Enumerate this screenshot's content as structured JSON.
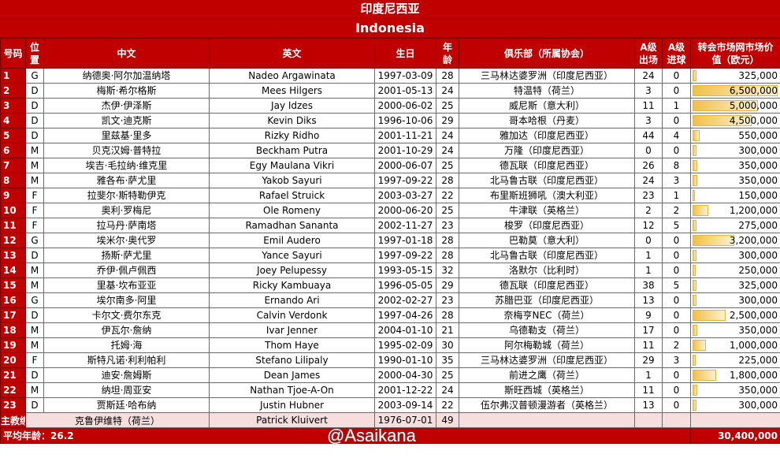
{
  "title": "印度尼西亚",
  "subtitle": "Indonesia",
  "headers": {
    "num": "号码",
    "pos": "位置",
    "cn": "中文",
    "en": "英文",
    "birth": "生日",
    "age": "年龄",
    "club": "俱乐部（所属协会）",
    "caps": "A级出场",
    "goals": "A级进球",
    "value": "转会市场网市场价值（欧元）"
  },
  "players": [
    [
      "1",
      "G",
      "纳德奥·阿尔加温纳塔",
      "Nadeo Argawinata",
      "1997-03-09",
      "28",
      "三马林达婆罗洲（印度尼西亚）",
      "24",
      "0",
      "325,000",
      325000
    ],
    [
      "2",
      "D",
      "梅斯·希尔格斯",
      "Mees Hilgers",
      "2001-05-13",
      "24",
      "特温特（荷兰）",
      "3",
      "0",
      "6,500,000",
      6500000
    ],
    [
      "3",
      "D",
      "杰伊·伊泽斯",
      "Jay Idzes",
      "2000-06-02",
      "25",
      "威尼斯（意大利）",
      "11",
      "1",
      "5,000,000",
      5000000
    ],
    [
      "4",
      "D",
      "凯文·迪克斯",
      "Kevin Diks",
      "1996-10-06",
      "29",
      "哥本哈根（丹麦）",
      "3",
      "0",
      "4,500,000",
      4500000
    ],
    [
      "5",
      "D",
      "里兹基·里多",
      "Rizky Ridho",
      "2001-11-21",
      "24",
      "雅加达（印度尼西亚）",
      "44",
      "4",
      "550,000",
      550000
    ],
    [
      "6",
      "M",
      "贝克汉姆·普特拉",
      "Beckham Putra",
      "2001-10-29",
      "24",
      "万隆（印度尼西亚）",
      "0",
      "0",
      "300,000",
      300000
    ],
    [
      "7",
      "M",
      "埃吉·毛拉纳·维克里",
      "Egy Maulana Vikri",
      "2000-06-07",
      "25",
      "德瓦联（印度尼西亚）",
      "26",
      "8",
      "350,000",
      350000
    ],
    [
      "8",
      "M",
      "雅各布·萨尤里",
      "Yakob Sayuri",
      "1997-09-22",
      "28",
      "北马鲁古联（印度尼西亚）",
      "24",
      "3",
      "350,000",
      350000
    ],
    [
      "9",
      "F",
      "拉斐尔·斯特勒伊克",
      "Rafael Struick",
      "2003-03-27",
      "22",
      "布里斯班狮吼（澳大利亚）",
      "23",
      "1",
      "150,000",
      150000
    ],
    [
      "10",
      "F",
      "奥利·罗梅尼",
      "Ole Romeny",
      "2000-06-20",
      "25",
      "牛津联（英格兰）",
      "2",
      "2",
      "1,200,000",
      1200000
    ],
    [
      "11",
      "F",
      "拉马丹·萨南塔",
      "Ramadhan Sananta",
      "2002-11-27",
      "23",
      "梭罗（印度尼西亚）",
      "12",
      "5",
      "275,000",
      275000
    ],
    [
      "12",
      "G",
      "埃米尔·奥代罗",
      "Emil Audero",
      "1997-01-18",
      "28",
      "巴勒莫（意大利）",
      "0",
      "0",
      "3,200,000",
      3200000
    ],
    [
      "13",
      "D",
      "扬斯·萨尤里",
      "Yance Sayuri",
      "1997-09-22",
      "28",
      "北马鲁古联（印度尼西亚）",
      "1",
      "0",
      "300,000",
      300000
    ],
    [
      "14",
      "M",
      "乔伊·佩卢佩西",
      "Joey Pelupessy",
      "1993-05-15",
      "32",
      "洛默尔（比利时）",
      "1",
      "0",
      "250,000",
      250000
    ],
    [
      "15",
      "M",
      "里基·坎布亚亚",
      "Ricky Kambuaya",
      "1996-05-05",
      "29",
      "德瓦联（印度尼西亚）",
      "38",
      "5",
      "325,000",
      325000
    ],
    [
      "16",
      "G",
      "埃尔南多·阿里",
      "Ernando Ari",
      "2002-02-27",
      "23",
      "苏腊巴亚（印度尼西亚）",
      "13",
      "0",
      "300,000",
      300000
    ],
    [
      "17",
      "D",
      "卡尔文·费尔东克",
      "Calvin Verdonk",
      "1997-04-26",
      "28",
      "奈梅亨NEC（荷兰）",
      "9",
      "0",
      "2,500,000",
      2500000
    ],
    [
      "18",
      "M",
      "伊瓦尔·詹纳",
      "Ivar Jenner",
      "2004-01-10",
      "21",
      "乌德勒支（荷兰）",
      "17",
      "0",
      "350,000",
      350000
    ],
    [
      "19",
      "M",
      "托姆·海",
      "Thom Haye",
      "1995-02-09",
      "30",
      "阿尔梅勒城（荷兰）",
      "11",
      "2",
      "1,000,000",
      1000000
    ],
    [
      "20",
      "F",
      "斯特凡诺·利利帕利",
      "Stefano Lilipaly",
      "1990-01-10",
      "35",
      "三马林达婆罗洲（印度尼西亚）",
      "29",
      "3",
      "225,000",
      225000
    ],
    [
      "21",
      "D",
      "迪安·詹姆斯",
      "Dean James",
      "2000-04-30",
      "25",
      "前进之鹰（荷兰）",
      "1",
      "0",
      "1,800,000",
      1800000
    ],
    [
      "22",
      "M",
      "纳坦·周亚安",
      "Nathan Tjoe-A-On",
      "2001-12-22",
      "24",
      "斯旺西城（英格兰）",
      "11",
      "0",
      "350,000",
      350000
    ],
    [
      "23",
      "D",
      "贾斯廷·哈布纳",
      "Justin Hubner",
      "2003-09-14",
      "22",
      "伍尔弗汉普顿漫游者（英格兰）",
      "13",
      "0",
      "300,000",
      300000
    ]
  ],
  "coach": {
    "label": "主教练",
    "cn": "克鲁伊维特（荷兰）",
    "en": "Patrick Kluivert",
    "birth": "1976-07-01",
    "age": "49"
  },
  "footer": {
    "avg_age": "平均年龄：26.2",
    "total": "30,400,000"
  },
  "watermark": "@Asaikana",
  "colors": {
    "header": "#c00000",
    "coach_row": "#f7dede",
    "bar": "#f1c048"
  }
}
